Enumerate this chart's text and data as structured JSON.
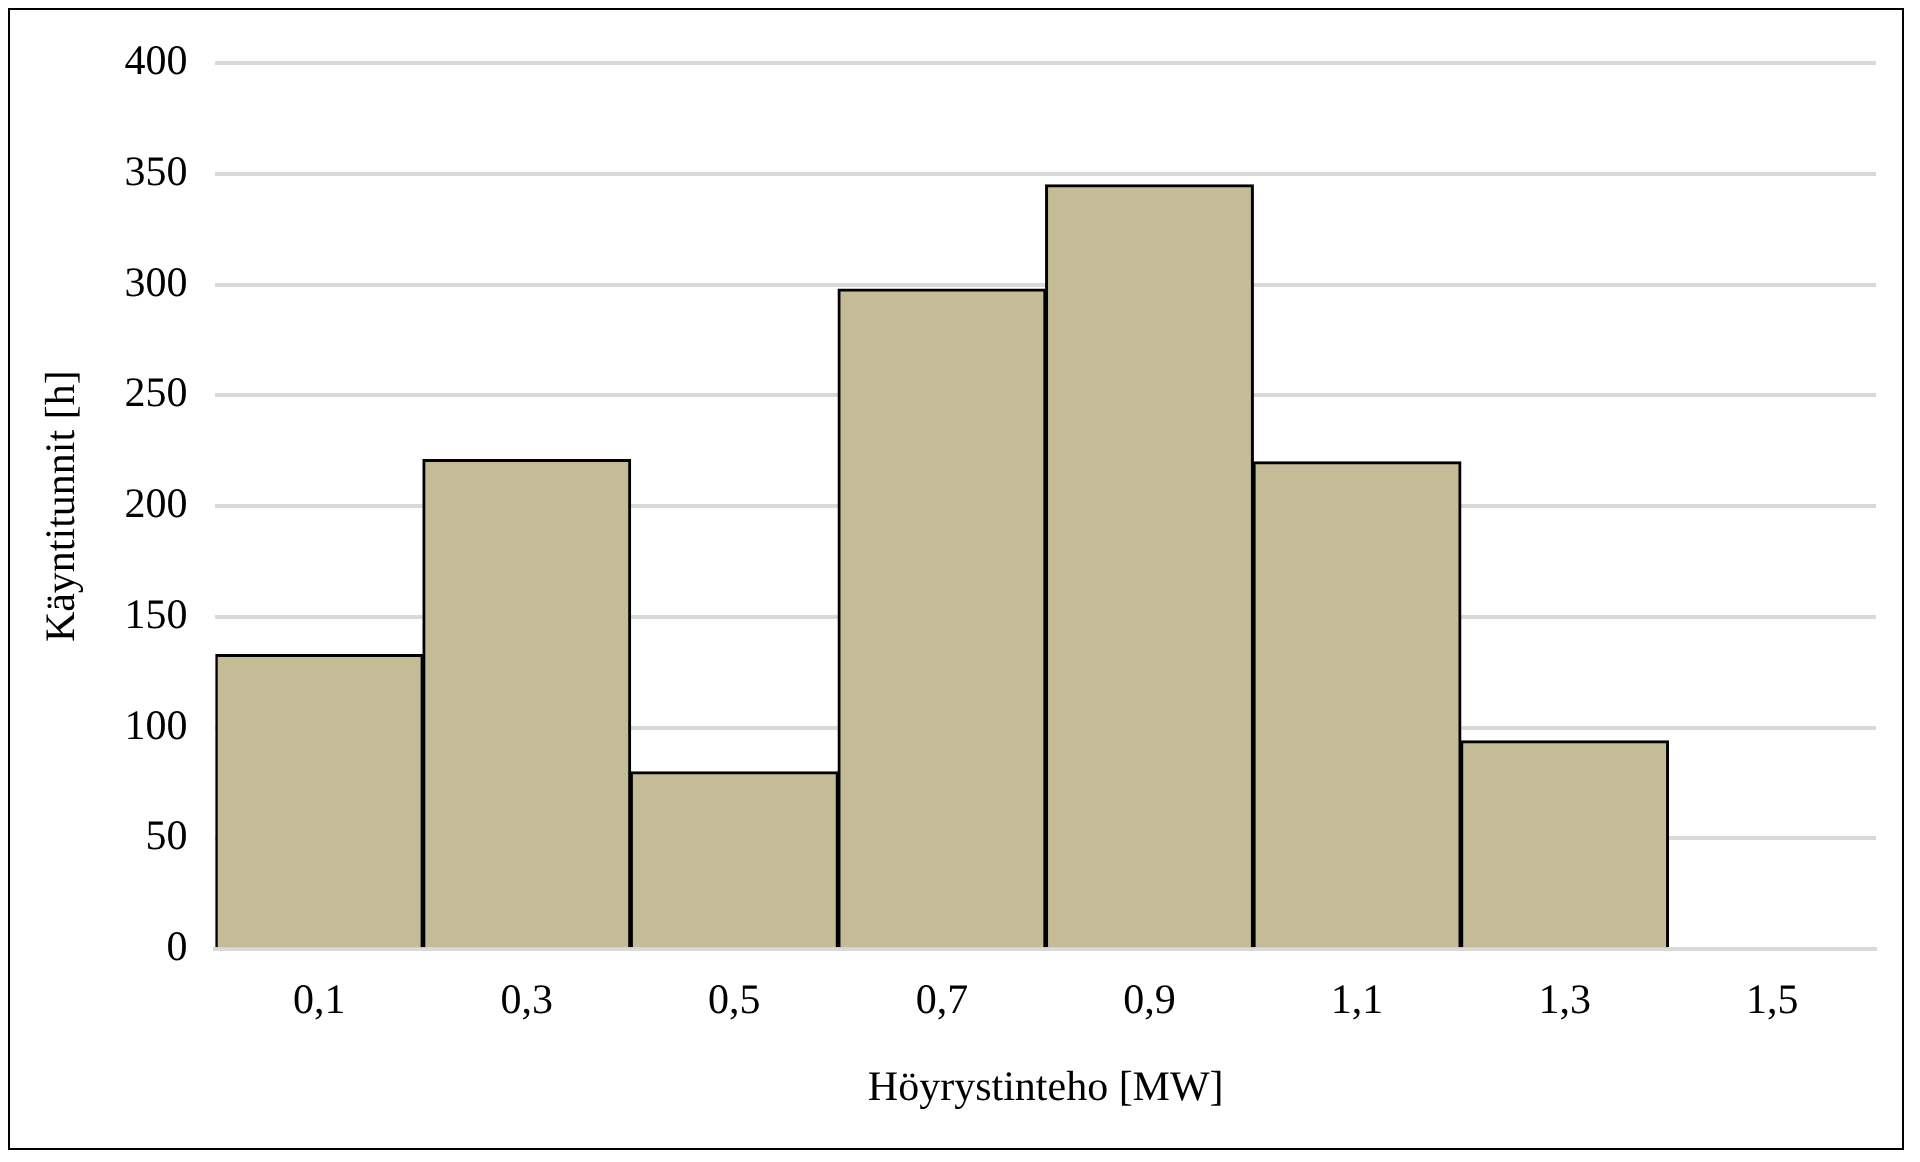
{
  "chart_data": {
    "type": "bar",
    "xlabel": "Höyrystinteho [MW]",
    "ylabel": "Käyntitunnit [h]",
    "categories": [
      "0,1",
      "0,3",
      "0,5",
      "0,7",
      "0,9",
      "1,1",
      "1,3",
      "1,5"
    ],
    "values": [
      133,
      221,
      80,
      298,
      345,
      220,
      94,
      0
    ],
    "color": "#c4bc97",
    "ylim": [
      0,
      400
    ],
    "yticks": [
      0,
      50,
      100,
      150,
      200,
      250,
      300,
      350,
      400
    ],
    "grid": "y",
    "legend": false
  }
}
